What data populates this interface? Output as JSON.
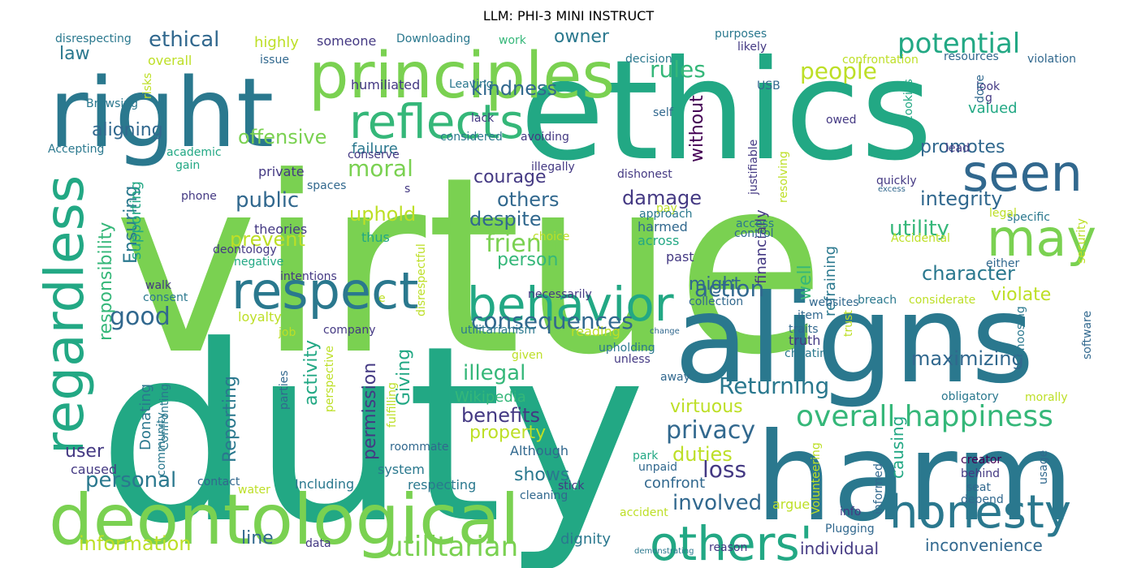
{
  "title": "LLM: PHI-3 MINI INSTRUCT",
  "palette": [
    "#440154",
    "#482878",
    "#3e4989",
    "#31688e",
    "#26828e",
    "#1f9e89",
    "#35b779",
    "#6ece58",
    "#b5de2b",
    "#fde725"
  ],
  "words": [
    {
      "text": "virtue",
      "color": "#7ad151"
    },
    {
      "text": "duty",
      "color": "#22a884"
    },
    {
      "text": "ethics",
      "color": "#22a884"
    },
    {
      "text": "right",
      "color": "#2a788e"
    },
    {
      "text": "aligns",
      "color": "#2a788e"
    },
    {
      "text": "harm",
      "color": "#2a788e"
    },
    {
      "text": "principles",
      "color": "#7ad151"
    },
    {
      "text": "deontological",
      "color": "#7ad151"
    },
    {
      "text": "reflects",
      "color": "#35b779"
    },
    {
      "text": "regardless",
      "color": "#22a884"
    },
    {
      "text": "respect",
      "color": "#2a788e"
    },
    {
      "text": "behavior",
      "color": "#22a884"
    },
    {
      "text": "seen",
      "color": "#31688e"
    },
    {
      "text": "may",
      "color": "#7ad151"
    },
    {
      "text": "honesty",
      "color": "#2a788e"
    },
    {
      "text": "others'",
      "color": "#22a884"
    },
    {
      "text": "overall happiness",
      "color": "#35b779"
    },
    {
      "text": "potential",
      "color": "#22a884"
    },
    {
      "text": "consequences",
      "color": "#31688e"
    },
    {
      "text": "utilitarian",
      "color": "#7ad151"
    },
    {
      "text": "information",
      "color": "#bddf26"
    },
    {
      "text": "Returning",
      "color": "#2a788e"
    },
    {
      "text": "privacy",
      "color": "#31688e"
    },
    {
      "text": "action",
      "color": "#31688e"
    },
    {
      "text": "good",
      "color": "#31688e"
    },
    {
      "text": "personal",
      "color": "#2a788e"
    },
    {
      "text": "friend",
      "color": "#7ad151"
    },
    {
      "text": "moral",
      "color": "#7ad151"
    },
    {
      "text": "kindness",
      "color": "#31688e"
    },
    {
      "text": "ethical",
      "color": "#31688e"
    },
    {
      "text": "rules",
      "color": "#35b779"
    },
    {
      "text": "people",
      "color": "#bddf26"
    },
    {
      "text": "offensive",
      "color": "#7ad151"
    },
    {
      "text": "aligning",
      "color": "#31688e"
    },
    {
      "text": "public",
      "color": "#31688e"
    },
    {
      "text": "prevent",
      "color": "#bddf26"
    },
    {
      "text": "uphold",
      "color": "#bddf26"
    },
    {
      "text": "courage",
      "color": "#443983"
    },
    {
      "text": "despite",
      "color": "#31688e"
    },
    {
      "text": "damage",
      "color": "#443983"
    },
    {
      "text": "others",
      "color": "#31688e"
    },
    {
      "text": "integrity",
      "color": "#31688e"
    },
    {
      "text": "promotes",
      "color": "#31688e"
    },
    {
      "text": "utility",
      "color": "#35b779"
    },
    {
      "text": "character",
      "color": "#2a788e"
    },
    {
      "text": "violate",
      "color": "#bddf26"
    },
    {
      "text": "maximizing",
      "color": "#31688e"
    },
    {
      "text": "virtuous",
      "color": "#bddf26"
    },
    {
      "text": "loss",
      "color": "#443983"
    },
    {
      "text": "duties",
      "color": "#bddf26"
    },
    {
      "text": "involved",
      "color": "#31688e"
    },
    {
      "text": "illegal",
      "color": "#35b779"
    },
    {
      "text": "benefits",
      "color": "#443983"
    },
    {
      "text": "property",
      "color": "#bddf26"
    },
    {
      "text": "shows",
      "color": "#2a788e"
    },
    {
      "text": "person",
      "color": "#35b779"
    },
    {
      "text": "might",
      "color": "#31688e"
    },
    {
      "text": "Wikipedia",
      "color": "#35b779"
    },
    {
      "text": "user",
      "color": "#443983"
    },
    {
      "text": "line",
      "color": "#31688e"
    },
    {
      "text": "dignity",
      "color": "#2a788e"
    },
    {
      "text": "individual",
      "color": "#443983"
    },
    {
      "text": "inconvenience",
      "color": "#31688e"
    },
    {
      "text": "owner",
      "color": "#2a788e"
    },
    {
      "text": "law",
      "color": "#2a788e"
    },
    {
      "text": "responsibility",
      "color": "#35b779"
    },
    {
      "text": "Ensuring",
      "color": "#2a788e"
    },
    {
      "text": "Reporting",
      "color": "#2a788e"
    },
    {
      "text": "activity",
      "color": "#22a884"
    },
    {
      "text": "permission",
      "color": "#443983"
    },
    {
      "text": "Giving",
      "color": "#22a884"
    },
    {
      "text": "without",
      "color": "#440154"
    },
    {
      "text": "well",
      "color": "#35b779"
    },
    {
      "text": "financially",
      "color": "#443983"
    },
    {
      "text": "refraining",
      "color": "#2a788e"
    },
    {
      "text": "causing",
      "color": "#22a884"
    },
    {
      "text": "Donating",
      "color": "#2a788e"
    },
    {
      "text": "supporting",
      "color": "#22a884"
    },
    {
      "text": "highly",
      "color": "#bddf26"
    },
    {
      "text": "someone",
      "color": "#443983"
    },
    {
      "text": "humiliated",
      "color": "#443983"
    },
    {
      "text": "Leaving",
      "color": "#2a788e"
    },
    {
      "text": "Downloading",
      "color": "#2a788e"
    },
    {
      "text": "work",
      "color": "#35b779"
    },
    {
      "text": "disrespecting",
      "color": "#2a788e"
    },
    {
      "text": "overall",
      "color": "#bddf26"
    },
    {
      "text": "issue",
      "color": "#31688e"
    },
    {
      "text": "lack",
      "color": "#443983"
    },
    {
      "text": "decision",
      "color": "#2a788e"
    },
    {
      "text": "purposes",
      "color": "#2a788e"
    },
    {
      "text": "likely",
      "color": "#443983"
    },
    {
      "text": "confrontation",
      "color": "#bddf26"
    },
    {
      "text": "resources",
      "color": "#31688e"
    },
    {
      "text": "violation",
      "color": "#31688e"
    },
    {
      "text": "valued",
      "color": "#22a884"
    },
    {
      "text": "failure",
      "color": "#2a788e"
    },
    {
      "text": "theories",
      "color": "#443983"
    },
    {
      "text": "private",
      "color": "#443983"
    },
    {
      "text": "harmed",
      "color": "#31688e"
    },
    {
      "text": "across",
      "color": "#22a884"
    },
    {
      "text": "past",
      "color": "#443983"
    },
    {
      "text": "thus",
      "color": "#22a884"
    },
    {
      "text": "loyalty",
      "color": "#bddf26"
    },
    {
      "text": "caused",
      "color": "#443983"
    },
    {
      "text": "system",
      "color": "#2a788e"
    },
    {
      "text": "Although",
      "color": "#31688e"
    },
    {
      "text": "Including",
      "color": "#2a788e"
    },
    {
      "text": "respecting",
      "color": "#2a788e"
    },
    {
      "text": "confront",
      "color": "#31688e"
    },
    {
      "text": "argue",
      "color": "#bddf26"
    },
    {
      "text": "truth",
      "color": "#443983"
    },
    {
      "text": "reading",
      "color": "#bddf26"
    },
    {
      "text": "USB",
      "color": "#31688e"
    },
    {
      "text": "self",
      "color": "#31688e"
    },
    {
      "text": "owed",
      "color": "#443983"
    },
    {
      "text": "cookies",
      "color": "#22a884"
    },
    {
      "text": "look",
      "color": "#443983"
    },
    {
      "text": "done",
      "color": "#31688e"
    },
    {
      "text": "lead",
      "color": "#443983"
    },
    {
      "text": "quickly",
      "color": "#443983"
    },
    {
      "text": "excess",
      "color": "#31688e"
    },
    {
      "text": "specific",
      "color": "#2a788e"
    },
    {
      "text": "legal",
      "color": "#bddf26"
    },
    {
      "text": "Accidental",
      "color": "#bddf26"
    },
    {
      "text": "security",
      "color": "#bddf26"
    },
    {
      "text": "either",
      "color": "#31688e"
    },
    {
      "text": "considerate",
      "color": "#bddf26"
    },
    {
      "text": "software",
      "color": "#31688e"
    },
    {
      "text": "Choosing",
      "color": "#2a788e"
    },
    {
      "text": "obligatory",
      "color": "#2a788e"
    },
    {
      "text": "morally",
      "color": "#bddf26"
    },
    {
      "text": "creator",
      "color": "#440154"
    },
    {
      "text": "usage",
      "color": "#31688e"
    },
    {
      "text": "behind",
      "color": "#443983"
    },
    {
      "text": "seat",
      "color": "#31688e"
    },
    {
      "text": "depend",
      "color": "#31688e"
    },
    {
      "text": "informed",
      "color": "#31688e"
    },
    {
      "text": "Volunteering",
      "color": "#bddf26"
    },
    {
      "text": "info",
      "color": "#443983"
    },
    {
      "text": "Plugging",
      "color": "#31688e"
    },
    {
      "text": "reason",
      "color": "#443983"
    },
    {
      "text": "demonstrating",
      "color": "#2a788e"
    },
    {
      "text": "accident",
      "color": "#bddf26"
    },
    {
      "text": "cleaning",
      "color": "#31688e"
    },
    {
      "text": "stick",
      "color": "#443983"
    },
    {
      "text": "unpaid",
      "color": "#31688e"
    },
    {
      "text": "park",
      "color": "#22a884"
    },
    {
      "text": "water",
      "color": "#bddf26"
    },
    {
      "text": "contact",
      "color": "#31688e"
    },
    {
      "text": "data",
      "color": "#443983"
    },
    {
      "text": "roommate",
      "color": "#31688e"
    },
    {
      "text": "parties",
      "color": "#31688e"
    },
    {
      "text": "fulfilling",
      "color": "#bddf26"
    },
    {
      "text": "perspective",
      "color": "#bddf26"
    },
    {
      "text": "community",
      "color": "#2a788e"
    },
    {
      "text": "Confronting",
      "color": "#2a788e"
    },
    {
      "text": "away",
      "color": "#31688e"
    },
    {
      "text": "unless",
      "color": "#443983"
    },
    {
      "text": "upholding",
      "color": "#2a788e"
    },
    {
      "text": "given",
      "color": "#bddf26"
    },
    {
      "text": "utilitarianism",
      "color": "#2a788e"
    },
    {
      "text": "change",
      "color": "#31688e"
    },
    {
      "text": "company",
      "color": "#443983"
    },
    {
      "text": "job",
      "color": "#bddf26"
    },
    {
      "text": "consent",
      "color": "#2a788e"
    },
    {
      "text": "walk",
      "color": "#443983"
    },
    {
      "text": "intentions",
      "color": "#443983"
    },
    {
      "text": "negative",
      "color": "#22a884"
    },
    {
      "text": "deontology",
      "color": "#443983"
    },
    {
      "text": "phone",
      "color": "#443983"
    },
    {
      "text": "academic",
      "color": "#22a884"
    },
    {
      "text": "gain",
      "color": "#22a884"
    },
    {
      "text": "Accepting",
      "color": "#2a788e"
    },
    {
      "text": "conserve",
      "color": "#443983"
    },
    {
      "text": "considered",
      "color": "#2a788e"
    },
    {
      "text": "avoiding",
      "color": "#443983"
    },
    {
      "text": "illegally",
      "color": "#443983"
    },
    {
      "text": "dishonest",
      "color": "#443983"
    },
    {
      "text": "spaces",
      "color": "#31688e"
    },
    {
      "text": "s",
      "color": "#443983"
    },
    {
      "text": "pay",
      "color": "#bddf26"
    },
    {
      "text": "approach",
      "color": "#2a788e"
    },
    {
      "text": "choice",
      "color": "#bddf26"
    },
    {
      "text": "necessarily",
      "color": "#443983"
    },
    {
      "text": "disrespectful",
      "color": "#bddf26"
    },
    {
      "text": "justifiable",
      "color": "#443983"
    },
    {
      "text": "resolving",
      "color": "#bddf26"
    },
    {
      "text": "access",
      "color": "#2a788e"
    },
    {
      "text": "control",
      "color": "#31688e"
    },
    {
      "text": "collection",
      "color": "#31688e"
    },
    {
      "text": "websites",
      "color": "#31688e"
    },
    {
      "text": "breach",
      "color": "#2a788e"
    },
    {
      "text": "item",
      "color": "#31688e"
    },
    {
      "text": "traits",
      "color": "#31688e"
    },
    {
      "text": "trust",
      "color": "#bddf26"
    },
    {
      "text": "cheating",
      "color": "#2a788e"
    },
    {
      "text": "Browsing",
      "color": "#2a788e"
    },
    {
      "text": "risks",
      "color": "#bddf26"
    },
    {
      "text": "e",
      "color": "#bddf26"
    },
    {
      "text": "g",
      "color": "#443983"
    }
  ]
}
